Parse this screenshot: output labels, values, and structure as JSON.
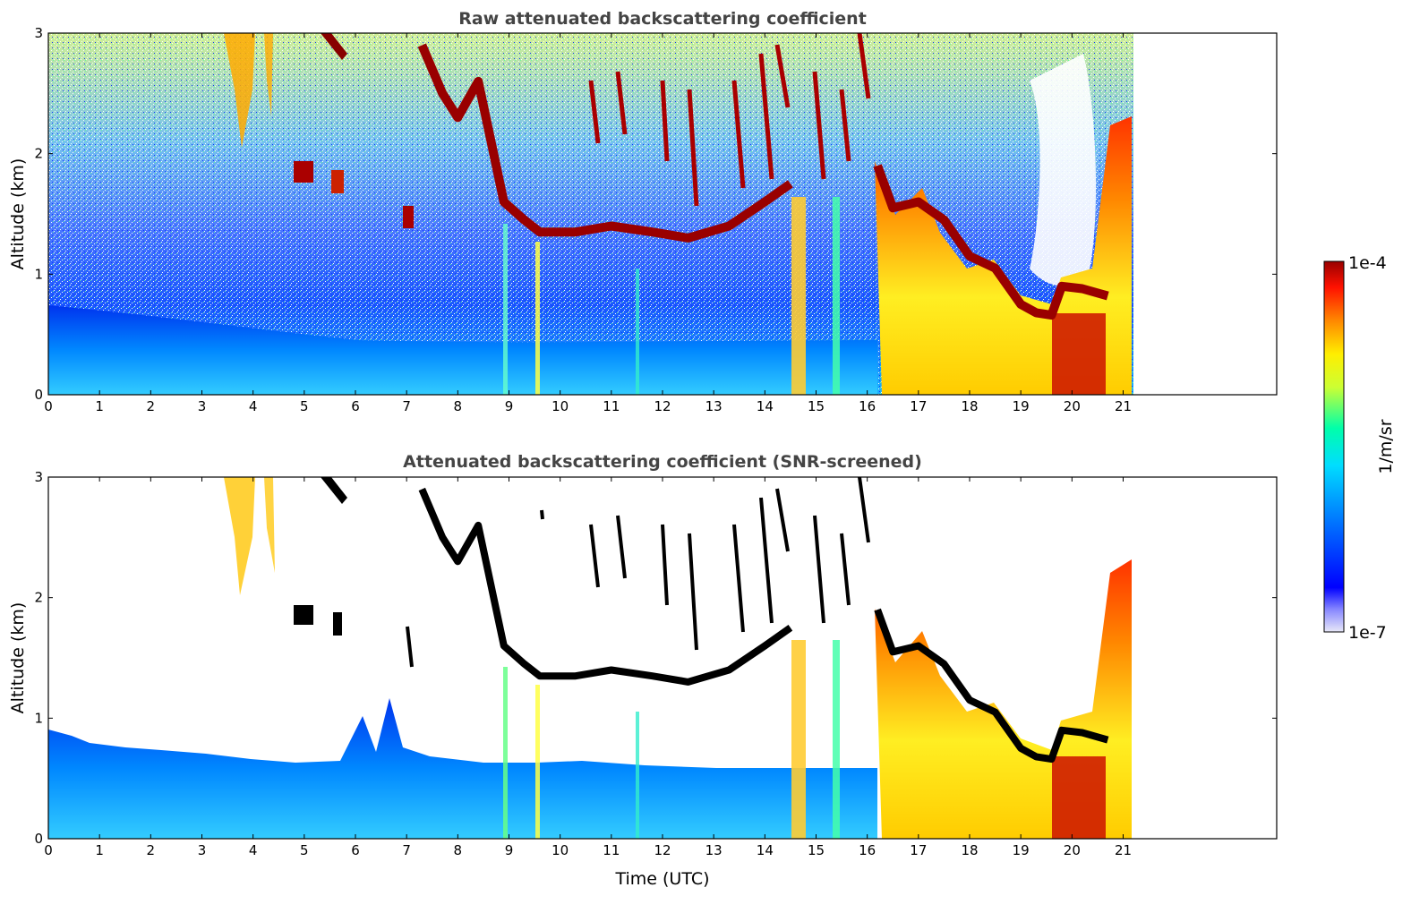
{
  "chart_data": [
    {
      "type": "heatmap",
      "title": "Raw attenuated backscattering coefficient",
      "xlabel": "",
      "ylabel": "Altitude (km)",
      "xlim": [
        0,
        24
      ],
      "ylim": [
        0,
        3
      ],
      "x_ticks": [
        "0",
        "1",
        "2",
        "3",
        "4",
        "5",
        "6",
        "7",
        "8",
        "9",
        "10",
        "11",
        "12",
        "13",
        "14",
        "15",
        "16",
        "17",
        "18",
        "19",
        "20",
        "21"
      ],
      "y_ticks": [
        "0",
        "1",
        "2",
        "3"
      ],
      "data_extent_hours": [
        0,
        21.2
      ],
      "grid": false,
      "cloud_layers": [
        {
          "name": "",
          "t": [
            7.3,
            7.7,
            8.0,
            8.4,
            8.9,
            9.3,
            9.6,
            10.3,
            11.0,
            11.8,
            12.5,
            13.3,
            14.0,
            14.5
          ],
          "z": [
            2.9,
            2.5,
            2.3,
            2.6,
            1.6,
            1.45,
            1.35,
            1.35,
            1.4,
            1.35,
            1.3,
            1.4,
            1.6,
            1.75
          ]
        },
        {
          "name": "",
          "t": [
            16.2,
            16.5,
            17.0,
            17.5,
            18.0,
            18.5,
            19.0,
            19.3,
            19.6,
            19.8,
            20.2,
            20.7
          ],
          "z": [
            1.9,
            1.55,
            1.6,
            1.45,
            1.15,
            1.05,
            0.75,
            0.68,
            0.66,
            0.9,
            0.88,
            0.82
          ]
        }
      ],
      "aerosol_layer_top_km": [
        0.6,
        0.55,
        0.5,
        0.45,
        0.45,
        0.4,
        0.45,
        0.4,
        0.4
      ]
    },
    {
      "type": "heatmap",
      "title": "Attenuated backscattering coefficient (SNR-screened)",
      "xlabel": "Time (UTC)",
      "ylabel": "Altitude (km)",
      "xlim": [
        0,
        24
      ],
      "ylim": [
        0,
        3
      ],
      "x_ticks": [
        "0",
        "1",
        "2",
        "3",
        "4",
        "5",
        "6",
        "7",
        "8",
        "9",
        "10",
        "11",
        "12",
        "13",
        "14",
        "15",
        "16",
        "17",
        "18",
        "19",
        "20",
        "21"
      ],
      "y_ticks": [
        "0",
        "1",
        "2",
        "3"
      ],
      "data_extent_hours": [
        0,
        21.2
      ],
      "grid": false,
      "screened_boundary_top_km": [
        0.85,
        0.75,
        0.7,
        0.65,
        0.6,
        0.6,
        0.95,
        0.7,
        0.55,
        0.6,
        0.55,
        0.6,
        0.55,
        0.5,
        0.55,
        0.6,
        0.6
      ]
    }
  ],
  "colorbar": {
    "label": "1/m/sr",
    "max_label": "1e-4",
    "min_label": "1e-7",
    "scale": "log",
    "range": [
      1e-07,
      0.0001
    ],
    "colormap": [
      "#e8e8f8",
      "#0000ff",
      "#00aaff",
      "#00ffcc",
      "#aaff44",
      "#ffff00",
      "#ff9900",
      "#ff2200",
      "#aa0000"
    ]
  }
}
